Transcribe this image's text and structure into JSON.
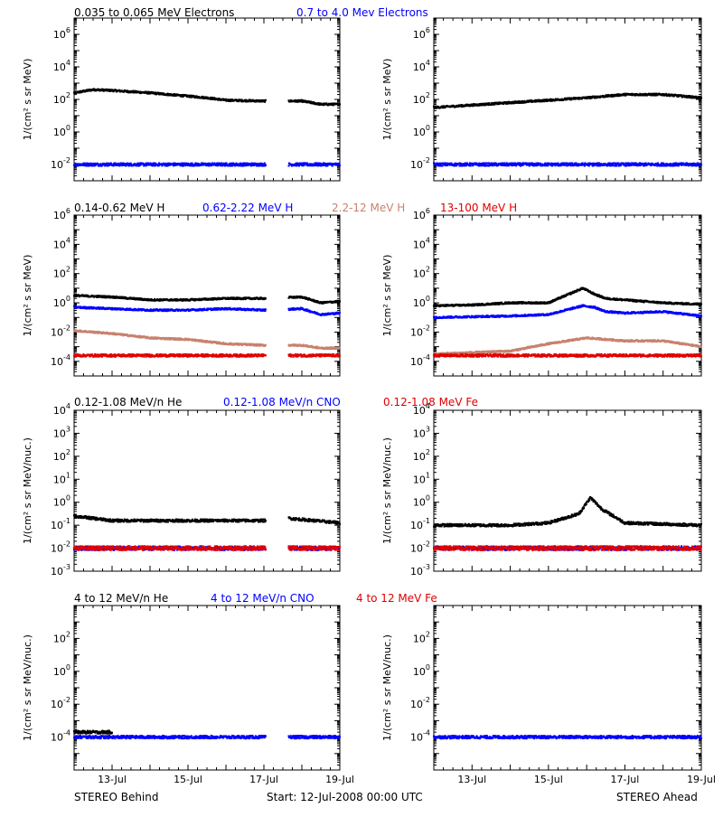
{
  "colors": {
    "black": "#000000",
    "blue": "#0000ff",
    "tan": "#c8826e",
    "red": "#e00000"
  },
  "footer": {
    "left": "STEREO Behind",
    "center": "Start: 12-Jul-2008 00:00 UTC",
    "right": "STEREO Ahead"
  },
  "chart_data": [
    {
      "type": "scatter",
      "log_y": true,
      "ylim": [
        0.001,
        10000000
      ],
      "ylabel": "1/(cm² s sr MeV)",
      "ytick_exponents": [
        -2,
        0,
        2,
        4,
        6
      ],
      "xlim": [
        "12-Jul-2008",
        "19-Jul-2008"
      ],
      "xtick_labels": [
        "13-Jul",
        "15-Jul",
        "17-Jul",
        "19-Jul"
      ],
      "legend_labels": [
        "0.035 to 0.065 MeV Electrons",
        "0.7 to 4.0 Mev Electrons"
      ],
      "panels": [
        {
          "spacecraft": "STEREO Behind",
          "gap": [
            5.05,
            5.65
          ],
          "series": [
            {
              "name": "0.035 to 0.065 MeV Electrons",
              "color": "black",
              "x": [
                0,
                0.5,
                1,
                2,
                3,
                3.5,
                4,
                5,
                6,
                6.5,
                7
              ],
              "y": [
                2.4,
                2.6,
                2.55,
                2.4,
                2.2,
                2.1,
                1.95,
                1.9,
                1.9,
                1.7,
                1.7
              ]
            },
            {
              "name": "0.7 to 4.0 Mev Electrons",
              "color": "blue",
              "x": [
                0,
                7
              ],
              "y": [
                -2,
                -2
              ]
            }
          ]
        },
        {
          "spacecraft": "STEREO Ahead",
          "gap": null,
          "series": [
            {
              "name": "0.035 to 0.065 MeV Electrons",
              "color": "black",
              "x": [
                0,
                1,
                2,
                3,
                4,
                5,
                6,
                7
              ],
              "y": [
                1.5,
                1.65,
                1.8,
                1.95,
                2.1,
                2.3,
                2.3,
                2.1
              ]
            },
            {
              "name": "0.7 to 4.0 Mev Electrons",
              "color": "blue",
              "x": [
                0,
                7
              ],
              "y": [
                -2,
                -2
              ]
            }
          ]
        }
      ]
    },
    {
      "type": "scatter",
      "log_y": true,
      "ylim": [
        1e-05,
        1000000
      ],
      "ylabel": "1/(cm² s sr MeV)",
      "ytick_exponents": [
        -4,
        -2,
        0,
        2,
        4,
        6
      ],
      "xlim": [
        "12-Jul-2008",
        "19-Jul-2008"
      ],
      "xtick_labels": [
        "13-Jul",
        "15-Jul",
        "17-Jul",
        "19-Jul"
      ],
      "legend_labels": [
        "0.14-0.62 MeV H",
        "0.62-2.22 MeV H",
        "2.2-12 MeV H",
        "13-100 MeV H"
      ],
      "panels": [
        {
          "spacecraft": "STEREO Behind",
          "gap": [
            5.05,
            5.65
          ],
          "series": [
            {
              "name": "0.14-0.62 MeV H",
              "color": "black",
              "x": [
                0,
                1,
                2,
                3,
                4,
                5,
                6,
                6.5,
                7
              ],
              "y": [
                0.5,
                0.4,
                0.2,
                0.2,
                0.3,
                0.3,
                0.4,
                0.0,
                0.1
              ]
            },
            {
              "name": "0.62-2.22 MeV H",
              "color": "blue",
              "x": [
                0,
                1,
                2,
                3,
                4,
                5,
                6,
                6.5,
                7
              ],
              "y": [
                -0.3,
                -0.4,
                -0.5,
                -0.5,
                -0.4,
                -0.5,
                -0.4,
                -0.8,
                -0.7
              ]
            },
            {
              "name": "2.2-12 MeV H",
              "color": "tan",
              "x": [
                0,
                1,
                2,
                3,
                4,
                5,
                6,
                6.5,
                7
              ],
              "y": [
                -1.9,
                -2.1,
                -2.4,
                -2.5,
                -2.8,
                -2.9,
                -2.9,
                -3.1,
                -3.1
              ]
            },
            {
              "name": "13-100 MeV H",
              "color": "red",
              "x": [
                0,
                7
              ],
              "y": [
                -3.6,
                -3.6
              ]
            }
          ]
        },
        {
          "spacecraft": "STEREO Ahead",
          "gap": null,
          "series": [
            {
              "name": "0.14-0.62 MeV H",
              "color": "black",
              "x": [
                0,
                1,
                2,
                3,
                3.9,
                4.2,
                4.5,
                5,
                6,
                7
              ],
              "y": [
                -0.2,
                -0.15,
                0.0,
                0.0,
                1.0,
                0.6,
                0.3,
                0.2,
                0.0,
                -0.1
              ]
            },
            {
              "name": "0.62-2.22 MeV H",
              "color": "blue",
              "x": [
                0,
                1,
                2,
                3,
                3.9,
                4.2,
                4.5,
                5,
                6,
                7
              ],
              "y": [
                -1.0,
                -0.95,
                -0.9,
                -0.8,
                -0.2,
                -0.3,
                -0.6,
                -0.7,
                -0.6,
                -0.9
              ]
            },
            {
              "name": "2.2-12 MeV H",
              "color": "tan",
              "x": [
                0,
                1,
                2,
                3,
                4,
                5,
                6,
                7
              ],
              "y": [
                -3.5,
                -3.4,
                -3.3,
                -2.8,
                -2.4,
                -2.6,
                -2.6,
                -3.0
              ]
            },
            {
              "name": "13-100 MeV H",
              "color": "red",
              "x": [
                0,
                7
              ],
              "y": [
                -3.6,
                -3.6
              ]
            }
          ]
        }
      ]
    },
    {
      "type": "scatter",
      "log_y": true,
      "ylim": [
        0.001,
        10000
      ],
      "ylabel": "1/(cm² s sr MeV/nuc.)",
      "ytick_exponents": [
        -3,
        -2,
        -1,
        0,
        1,
        2,
        3,
        4
      ],
      "ytick_labels": [
        "10⁻³",
        "10⁻²",
        "10⁻¹",
        "10⁰",
        "10¹",
        "10²",
        "10³",
        "10⁴"
      ],
      "xlim": [
        "12-Jul-2008",
        "19-Jul-2008"
      ],
      "xtick_labels": [
        "13-Jul",
        "15-Jul",
        "17-Jul",
        "19-Jul"
      ],
      "legend_labels": [
        "0.12-1.08 MeV/n He",
        "0.12-1.08 MeV/n CNO",
        "0.12-1.08 MeV Fe"
      ],
      "panels": [
        {
          "spacecraft": "STEREO Behind",
          "gap": [
            5.05,
            5.65
          ],
          "series": [
            {
              "name": "0.12-1.08 MeV/n He",
              "color": "black",
              "x": [
                0,
                0.5,
                1,
                3,
                5,
                5.65,
                7
              ],
              "y": [
                -0.6,
                -0.7,
                -0.8,
                -0.8,
                -0.8,
                -0.7,
                -0.9
              ]
            },
            {
              "name": "0.12-1.08 MeV/n CNO",
              "color": "blue",
              "x": [
                0,
                7
              ],
              "y": [
                -2.0,
                -2.0
              ]
            },
            {
              "name": "0.12-1.08 MeV Fe",
              "color": "red",
              "x": [
                0,
                7
              ],
              "y": [
                -2.0,
                -2.0
              ]
            }
          ]
        },
        {
          "spacecraft": "STEREO Ahead",
          "gap": null,
          "series": [
            {
              "name": "0.12-1.08 MeV/n He",
              "color": "black",
              "x": [
                0,
                2,
                3,
                3.8,
                4.1,
                4.4,
                5,
                7
              ],
              "y": [
                -1.0,
                -1.0,
                -0.9,
                -0.5,
                0.2,
                -0.3,
                -0.9,
                -1.0
              ]
            },
            {
              "name": "0.12-1.08 MeV/n CNO",
              "color": "blue",
              "x": [
                0,
                7
              ],
              "y": [
                -2.0,
                -2.0
              ]
            },
            {
              "name": "0.12-1.08 MeV Fe",
              "color": "red",
              "x": [
                0,
                7
              ],
              "y": [
                -2.0,
                -2.0
              ]
            }
          ]
        }
      ]
    },
    {
      "type": "scatter",
      "log_y": true,
      "ylim": [
        1e-06,
        10000
      ],
      "ylabel": "1/(cm² s sr MeV/nuc.)",
      "ytick_exponents": [
        -4,
        -2,
        0,
        2
      ],
      "xlim": [
        "12-Jul-2008",
        "19-Jul-2008"
      ],
      "xtick_labels": [
        "13-Jul",
        "15-Jul",
        "17-Jul",
        "19-Jul"
      ],
      "legend_labels": [
        "4 to 12 MeV/n He",
        "4 to 12 MeV/n CNO",
        "4 to 12 MeV Fe"
      ],
      "panels": [
        {
          "spacecraft": "STEREO Behind",
          "gap": [
            5.05,
            5.65
          ],
          "series": [
            {
              "name": "4 to 12 MeV/n He",
              "color": "black",
              "x": [
                0,
                1.0
              ],
              "y": [
                -3.7,
                -3.7
              ]
            },
            {
              "name": "4 to 12 MeV/n CNO",
              "color": "blue",
              "x": [
                0,
                7
              ],
              "y": [
                -4.0,
                -4.0
              ]
            }
          ]
        },
        {
          "spacecraft": "STEREO Ahead",
          "gap": null,
          "series": [
            {
              "name": "4 to 12 MeV/n CNO",
              "color": "blue",
              "x": [
                0,
                7
              ],
              "y": [
                -4.0,
                -4.0
              ]
            }
          ]
        }
      ]
    }
  ]
}
